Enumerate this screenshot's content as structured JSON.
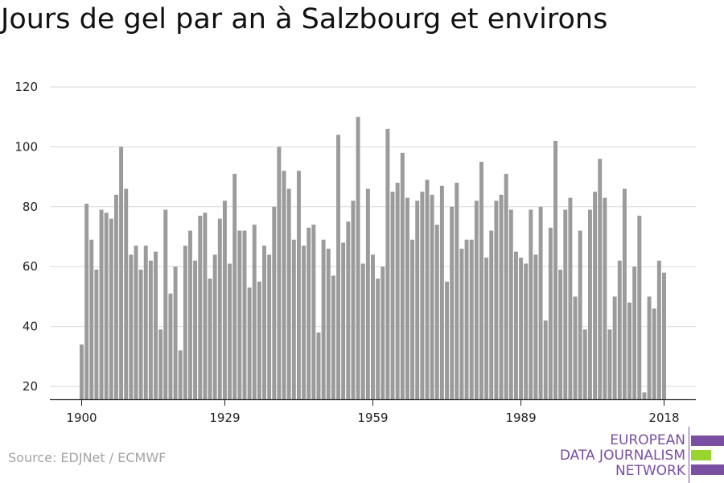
{
  "title": "Jours de gel par an à Salzbourg et environs",
  "source": "Source: EDJNet / ECMWF",
  "logo": {
    "lines": [
      "EUROPEAN",
      "DATA JOURNALISM",
      "NETWORK"
    ],
    "colors": {
      "purple": "#7a4ea0",
      "green": "#99d42f"
    }
  },
  "colors": {
    "bar": "#9b9b9b",
    "grid": "#d9d9d9",
    "axis": "#222222"
  },
  "chart_data": {
    "type": "bar",
    "title": "Jours de gel par an à Salzbourg et environs",
    "xlabel": "",
    "ylabel": "",
    "x_ticks": [
      1900,
      1929,
      1959,
      1989,
      2018
    ],
    "y_ticks": [
      20,
      40,
      60,
      80,
      100,
      120
    ],
    "ylim": [
      15,
      120
    ],
    "xlim": [
      1900,
      2018
    ],
    "grid": true,
    "legend": "none",
    "x": [
      1900,
      1901,
      1902,
      1903,
      1904,
      1905,
      1906,
      1907,
      1908,
      1909,
      1910,
      1911,
      1912,
      1913,
      1914,
      1915,
      1916,
      1917,
      1918,
      1919,
      1920,
      1921,
      1922,
      1923,
      1924,
      1925,
      1926,
      1927,
      1928,
      1929,
      1930,
      1931,
      1932,
      1933,
      1934,
      1935,
      1936,
      1937,
      1938,
      1939,
      1940,
      1941,
      1942,
      1943,
      1944,
      1945,
      1946,
      1947,
      1948,
      1949,
      1950,
      1951,
      1952,
      1953,
      1954,
      1955,
      1956,
      1957,
      1958,
      1959,
      1960,
      1961,
      1962,
      1963,
      1964,
      1965,
      1966,
      1967,
      1968,
      1969,
      1970,
      1971,
      1972,
      1973,
      1974,
      1975,
      1976,
      1977,
      1978,
      1979,
      1980,
      1981,
      1982,
      1983,
      1984,
      1985,
      1986,
      1987,
      1988,
      1989,
      1990,
      1991,
      1992,
      1993,
      1994,
      1995,
      1996,
      1997,
      1998,
      1999,
      2000,
      2001,
      2002,
      2003,
      2004,
      2005,
      2006,
      2007,
      2008,
      2009,
      2010,
      2011,
      2012,
      2013,
      2014,
      2015,
      2016,
      2017,
      2018
    ],
    "values": [
      34,
      81,
      69,
      59,
      79,
      78,
      76,
      84,
      100,
      86,
      64,
      67,
      59,
      67,
      62,
      65,
      39,
      79,
      51,
      60,
      32,
      67,
      72,
      62,
      77,
      78,
      56,
      64,
      76,
      82,
      61,
      91,
      72,
      72,
      53,
      74,
      55,
      67,
      64,
      80,
      100,
      92,
      86,
      69,
      92,
      67,
      73,
      74,
      38,
      69,
      66,
      57,
      104,
      68,
      75,
      82,
      110,
      61,
      86,
      64,
      56,
      60,
      106,
      85,
      88,
      98,
      83,
      69,
      82,
      85,
      89,
      84,
      74,
      87,
      55,
      80,
      88,
      66,
      69,
      69,
      82,
      95,
      63,
      72,
      82,
      84,
      91,
      79,
      65,
      63,
      61,
      79,
      64,
      80,
      42,
      73,
      102,
      59,
      79,
      83,
      50,
      72,
      39,
      79,
      85,
      96,
      83,
      39,
      50,
      62,
      86,
      48,
      60,
      77,
      18,
      50,
      46,
      62,
      58
    ]
  }
}
